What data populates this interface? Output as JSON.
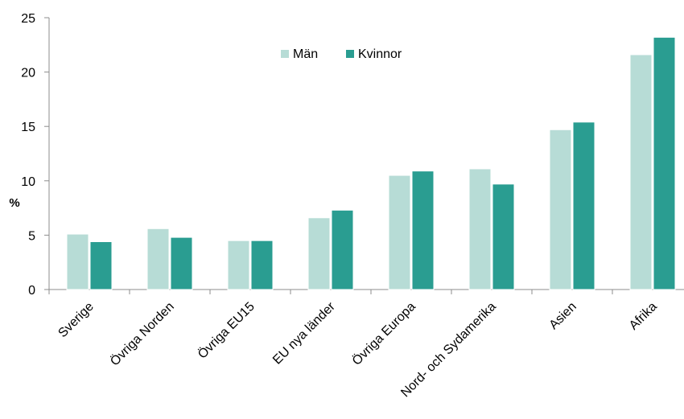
{
  "chart_data": {
    "type": "bar",
    "categories": [
      "Sverige",
      "Övriga Norden",
      "Övriga EU15",
      "EU nya länder",
      "Övriga Europa",
      "Nord- och Sydamerika",
      "Asien",
      "Afrika"
    ],
    "series": [
      {
        "name": "Män",
        "color": "#b7dcd6",
        "values": [
          5.1,
          5.6,
          4.5,
          6.6,
          10.5,
          11.1,
          14.7,
          21.6
        ]
      },
      {
        "name": "Kvinnor",
        "color": "#2a9d91",
        "values": [
          4.4,
          4.8,
          4.5,
          7.3,
          10.9,
          9.7,
          15.4,
          23.2
        ]
      }
    ],
    "ylabel": "%",
    "ylim": [
      0,
      25
    ],
    "yticks": [
      "0",
      "5",
      "10",
      "15",
      "20",
      "25"
    ],
    "legend_position": "top-center",
    "grid": false
  }
}
